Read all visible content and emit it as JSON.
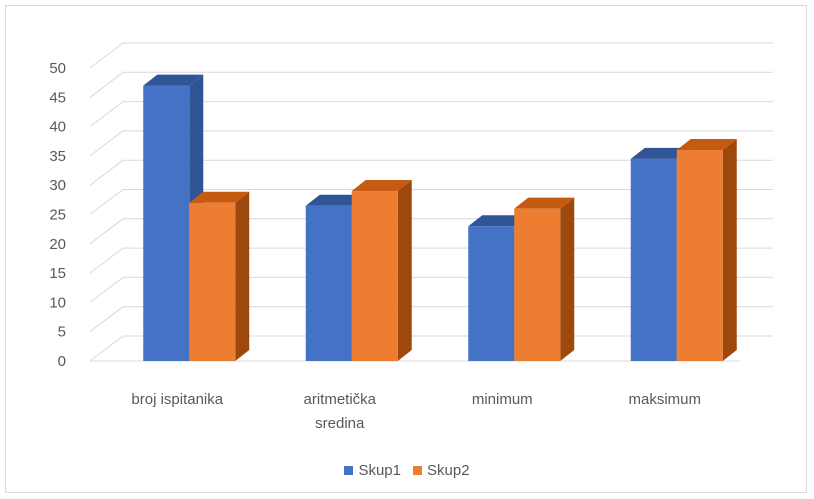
{
  "chart_data": {
    "type": "bar",
    "categories": [
      [
        "broj ispitanika"
      ],
      [
        "aritmetička",
        "sredina"
      ],
      [
        "minimum"
      ],
      [
        "maksimum"
      ]
    ],
    "series": [
      {
        "name": "Skup1",
        "values": [
          47,
          26.5,
          23,
          34.5
        ],
        "color": "#4472c4",
        "side": "#2f5597",
        "top": "#2f5597"
      },
      {
        "name": "Skup2",
        "values": [
          27,
          29,
          26,
          36
        ],
        "color": "#ed7d31",
        "side": "#9e480e",
        "top": "#c55a11"
      }
    ],
    "yticks": [
      "0",
      "5",
      "10",
      "15",
      "20",
      "25",
      "30",
      "35",
      "40",
      "45",
      "50"
    ],
    "ylim": [
      0,
      50
    ],
    "title": "",
    "xlabel": "",
    "ylabel": "",
    "grid": true,
    "legend": "bottom"
  }
}
